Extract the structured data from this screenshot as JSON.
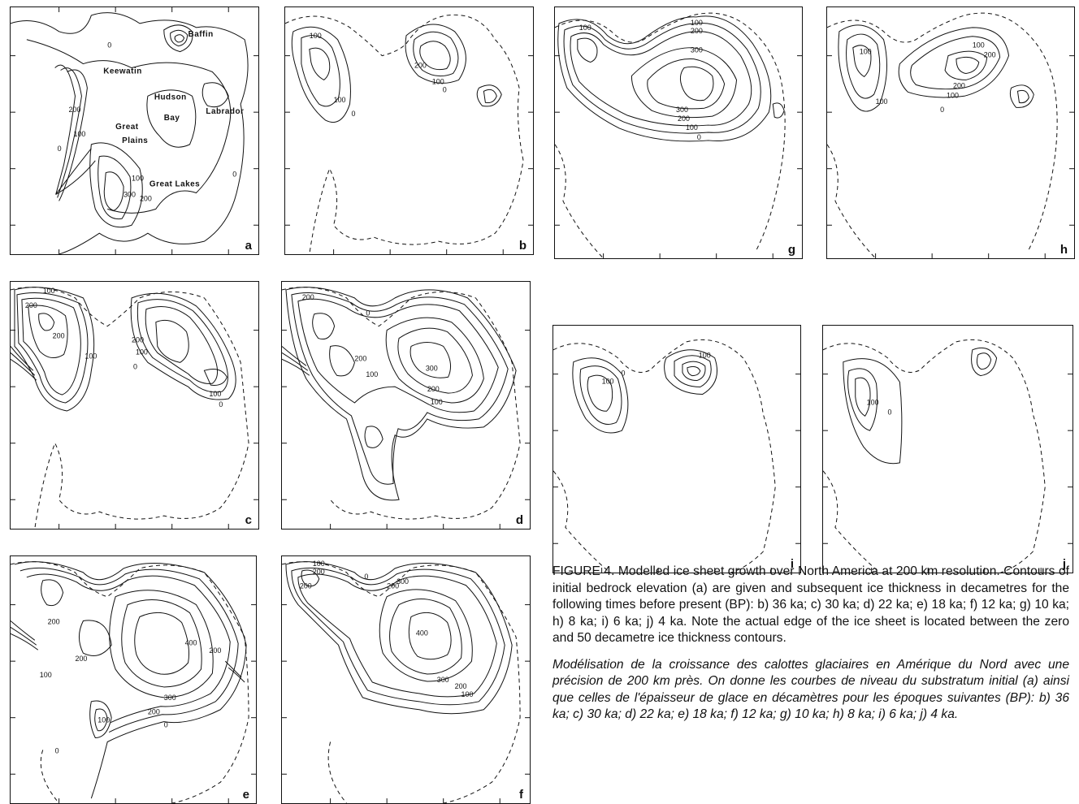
{
  "panels": [
    {
      "id": "a",
      "label": "a"
    },
    {
      "id": "b",
      "label": "b"
    },
    {
      "id": "c",
      "label": "c"
    },
    {
      "id": "d",
      "label": "d"
    },
    {
      "id": "e",
      "label": "e"
    },
    {
      "id": "f",
      "label": "f"
    },
    {
      "id": "g",
      "label": "g"
    },
    {
      "id": "h",
      "label": "h"
    },
    {
      "id": "i",
      "label": "i"
    },
    {
      "id": "j",
      "label": "j"
    }
  ],
  "regions": {
    "baffin": "Baffin",
    "keewatin": "Keewatin",
    "hudson": "Hudson",
    "bay": "Bay",
    "labrador": "Labrador",
    "great": "Great",
    "plains": "Plains",
    "great_lakes": "Great Lakes"
  },
  "contours": {
    "c0": "0",
    "c100": "100",
    "c200": "200",
    "c300": "300",
    "c400": "400"
  },
  "caption": {
    "en": "FIGURE 4.   Modelled ice sheet growth over North America at 200 km resolution. Contours of initial bedrock elevation (a) are given and subsequent ice thickness in decametres for the following times before present (BP): b) 36 ka; c) 30 ka; d) 22 ka; e) 18 ka; f) 12 ka; g) 10 ka; h) 8 ka; i) 6 ka; j) 4 ka. Note the actual edge of the ice sheet is located between the zero and 50 decametre ice thickness contours.",
    "fr": "Modélisation de la croissance des calottes glaciaires en Amérique du Nord avec une précision de 200 km près. On donne les courbes de niveau du substratum initial (a) ainsi que celles de l'épaisseur de glace en décamètres pour les époques suivantes (BP): b) 36 ka; c) 30 ka; d) 22 ka; e) 18 ka; f) 12 ka; g) 10 ka; h) 8 ka; i) 6 ka; j) 4 ka."
  }
}
